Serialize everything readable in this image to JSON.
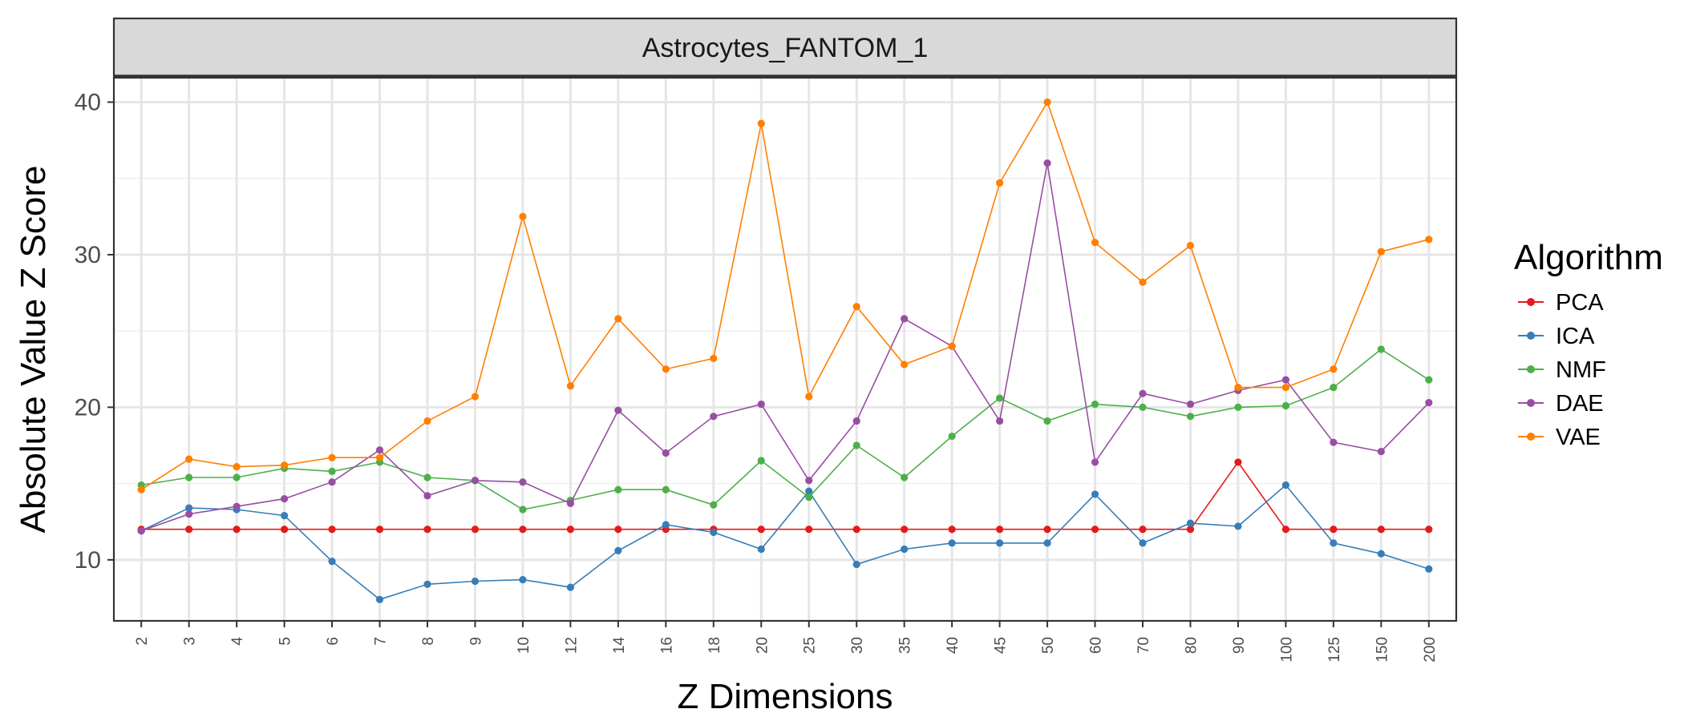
{
  "chart_data": {
    "type": "line",
    "facet_title": "Astrocytes_FANTOM_1",
    "xlabel": "Z Dimensions",
    "ylabel": "Absolute Value Z Score",
    "legend_title": "Algorithm",
    "legend_position": "right",
    "grid": true,
    "ylim": [
      6,
      41.6
    ],
    "yticks": [
      10,
      20,
      30,
      40
    ],
    "categories": [
      "2",
      "3",
      "4",
      "5",
      "6",
      "7",
      "8",
      "9",
      "10",
      "12",
      "14",
      "16",
      "18",
      "20",
      "25",
      "30",
      "35",
      "40",
      "45",
      "50",
      "60",
      "70",
      "80",
      "90",
      "100",
      "125",
      "150",
      "200"
    ],
    "series": [
      {
        "name": "PCA",
        "color": "#e41a1c",
        "values": [
          12.0,
          12.0,
          12.0,
          12.0,
          12.0,
          12.0,
          12.0,
          12.0,
          12.0,
          12.0,
          12.0,
          12.0,
          12.0,
          12.0,
          12.0,
          12.0,
          12.0,
          12.0,
          12.0,
          12.0,
          12.0,
          12.0,
          12.0,
          16.4,
          12.0,
          12.0,
          12.0,
          12.0
        ]
      },
      {
        "name": "ICA",
        "color": "#377eb8",
        "values": [
          11.9,
          13.4,
          13.3,
          12.9,
          9.9,
          7.4,
          8.4,
          8.6,
          8.7,
          8.2,
          10.6,
          12.3,
          11.8,
          10.7,
          14.5,
          9.7,
          10.7,
          11.1,
          11.1,
          11.1,
          14.3,
          11.1,
          12.4,
          12.2,
          14.9,
          11.1,
          10.4,
          9.4
        ]
      },
      {
        "name": "NMF",
        "color": "#4daf4a",
        "values": [
          14.9,
          15.4,
          15.4,
          16.0,
          15.8,
          16.4,
          15.4,
          15.2,
          13.3,
          13.9,
          14.6,
          14.6,
          13.6,
          16.5,
          14.1,
          17.5,
          15.4,
          18.1,
          20.6,
          19.1,
          20.2,
          20.0,
          19.4,
          20.0,
          20.1,
          21.3,
          23.8,
          21.8
        ]
      },
      {
        "name": "DAE",
        "color": "#984ea3",
        "values": [
          11.9,
          13.0,
          13.5,
          14.0,
          15.1,
          17.2,
          14.2,
          15.2,
          15.1,
          13.7,
          19.8,
          17.0,
          19.4,
          20.2,
          15.2,
          19.1,
          25.8,
          24.0,
          19.1,
          36.0,
          16.4,
          20.9,
          20.2,
          21.1,
          21.8,
          17.7,
          17.1,
          20.3
        ]
      },
      {
        "name": "VAE",
        "color": "#ff7f00",
        "values": [
          14.6,
          16.6,
          16.1,
          16.2,
          16.7,
          16.7,
          19.1,
          20.7,
          32.5,
          21.4,
          25.8,
          22.5,
          23.2,
          38.6,
          20.7,
          26.6,
          22.8,
          24.0,
          34.7,
          40.0,
          30.8,
          28.2,
          30.6,
          21.3,
          21.3,
          22.5,
          30.2,
          31.0
        ]
      }
    ]
  }
}
